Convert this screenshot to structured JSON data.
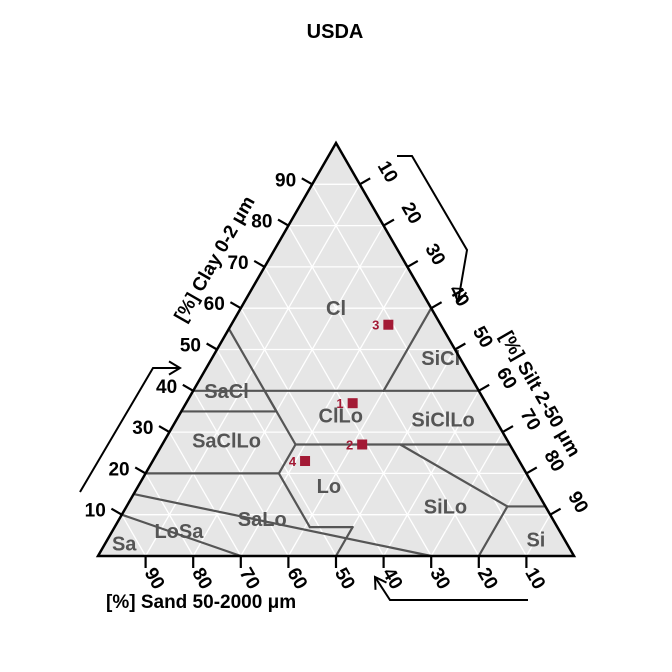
{
  "chart_data": {
    "type": "scatter",
    "subtype": "ternary",
    "title": "USDA",
    "axes": {
      "clay": {
        "label": "[%] Clay 0-2 μm",
        "ticks": [
          10,
          20,
          30,
          40,
          50,
          60,
          70,
          80,
          90
        ]
      },
      "silt": {
        "label": "[%] Silt 2-50 μm",
        "ticks": [
          10,
          20,
          30,
          40,
          50,
          60,
          70,
          80,
          90
        ]
      },
      "sand": {
        "label": "[%] Sand 50-2000 μm",
        "ticks": [
          90,
          80,
          70,
          60,
          50,
          40,
          30,
          20,
          10
        ]
      }
    },
    "grid": true,
    "texture_classes": [
      "Cl",
      "SiCl",
      "SaCl",
      "ClLo",
      "SiClLo",
      "SaClLo",
      "Lo",
      "SiLo",
      "SaLo",
      "Si",
      "LoSa",
      "Sa"
    ],
    "points": [
      {
        "label": "1",
        "clay": 37,
        "silt": 35,
        "sand": 28
      },
      {
        "label": "2",
        "clay": 27,
        "silt": 42,
        "sand": 31
      },
      {
        "label": "3",
        "clay": 56,
        "silt": 33,
        "sand": 11
      },
      {
        "label": "4",
        "clay": 23,
        "silt": 32,
        "sand": 45
      }
    ],
    "point_color": "#a31a35",
    "background_color": "#e6e6e6",
    "grid_color": "#ffffff",
    "boundary_color": "#555555"
  }
}
